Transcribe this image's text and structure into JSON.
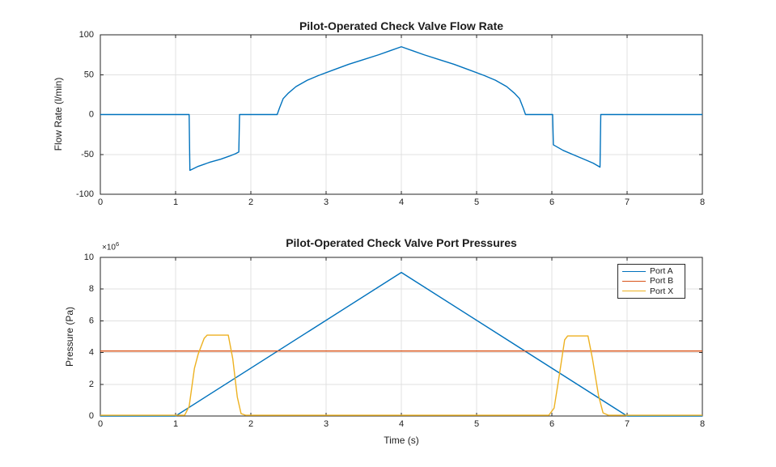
{
  "style": {
    "background": "#ffffff",
    "axis_color": "#252525",
    "grid_color": "#e0e0e0",
    "text_color": "#1c1c1c"
  },
  "chart_data": [
    {
      "name": "flow-rate",
      "type": "line",
      "title": "Pilot-Operated Check Valve Flow Rate",
      "xlabel": "",
      "ylabel": "Flow Rate (l/min)",
      "xlim": [
        0,
        8
      ],
      "ylim": [
        -100,
        100
      ],
      "xticks": [
        0,
        1,
        2,
        3,
        4,
        5,
        6,
        7,
        8
      ],
      "xtick_labels": [
        "0",
        "1",
        "2",
        "3",
        "4",
        "5",
        "6",
        "7",
        "8"
      ],
      "yticks": [
        -100,
        -50,
        0,
        50,
        100
      ],
      "ytick_labels": [
        "-100",
        "-50",
        "0",
        "50",
        "100"
      ],
      "grid": true,
      "legend": null,
      "series": [
        {
          "name": "Flow Rate",
          "color": "#0072BD",
          "points": [
            [
              0,
              0
            ],
            [
              1.18,
              0
            ],
            [
              1.19,
              -70
            ],
            [
              1.3,
              -65
            ],
            [
              1.45,
              -60
            ],
            [
              1.6,
              -56
            ],
            [
              1.72,
              -52
            ],
            [
              1.8,
              -49
            ],
            [
              1.84,
              -47
            ],
            [
              1.85,
              0
            ],
            [
              2.35,
              0
            ],
            [
              2.38,
              8
            ],
            [
              2.43,
              20
            ],
            [
              2.5,
              27
            ],
            [
              2.6,
              35
            ],
            [
              2.75,
              43
            ],
            [
              2.9,
              49
            ],
            [
              3.1,
              56
            ],
            [
              3.3,
              63
            ],
            [
              3.5,
              69
            ],
            [
              3.7,
              75
            ],
            [
              3.85,
              80
            ],
            [
              4,
              85
            ],
            [
              4.15,
              80
            ],
            [
              4.3,
              75
            ],
            [
              4.5,
              69
            ],
            [
              4.7,
              63
            ],
            [
              4.9,
              56
            ],
            [
              5.1,
              49
            ],
            [
              5.25,
              43
            ],
            [
              5.4,
              35
            ],
            [
              5.5,
              27
            ],
            [
              5.57,
              20
            ],
            [
              5.62,
              8
            ],
            [
              5.65,
              0
            ],
            [
              6.01,
              0
            ],
            [
              6.02,
              -38
            ],
            [
              6.15,
              -45
            ],
            [
              6.3,
              -51
            ],
            [
              6.45,
              -57
            ],
            [
              6.55,
              -61
            ],
            [
              6.64,
              -66
            ],
            [
              6.65,
              0
            ],
            [
              8,
              0
            ]
          ]
        }
      ]
    },
    {
      "name": "port-pressures",
      "type": "line",
      "title": "Pilot-Operated Check Valve Port Pressures",
      "xlabel": "Time (s)",
      "ylabel": "Pressure (Pa)",
      "y_multiplier": {
        "base": "×10",
        "exponent": "6"
      },
      "xlim": [
        0,
        8
      ],
      "ylim": [
        0,
        10000000
      ],
      "xticks": [
        0,
        1,
        2,
        3,
        4,
        5,
        6,
        7,
        8
      ],
      "xtick_labels": [
        "0",
        "1",
        "2",
        "3",
        "4",
        "5",
        "6",
        "7",
        "8"
      ],
      "yticks": [
        0,
        2000000,
        4000000,
        6000000,
        8000000,
        10000000
      ],
      "ytick_labels": [
        "0",
        "2",
        "4",
        "6",
        "8",
        "10"
      ],
      "grid": true,
      "legend": {
        "position": "northeast",
        "items": [
          {
            "label": "Port A",
            "color": "#0072BD"
          },
          {
            "label": "Port B",
            "color": "#D95319"
          },
          {
            "label": "Port X",
            "color": "#EDB120"
          }
        ]
      },
      "series": [
        {
          "name": "Port A",
          "color": "#0072BD",
          "points": [
            [
              0,
              0
            ],
            [
              1,
              0
            ],
            [
              4,
              9050000
            ],
            [
              7,
              0
            ],
            [
              8,
              0
            ]
          ]
        },
        {
          "name": "Port B",
          "color": "#D95319",
          "points": [
            [
              0,
              4100000
            ],
            [
              8,
              4100000
            ]
          ]
        },
        {
          "name": "Port X",
          "color": "#EDB120",
          "points": [
            [
              0,
              50000
            ],
            [
              1.12,
              50000
            ],
            [
              1.18,
              600000
            ],
            [
              1.25,
              3000000
            ],
            [
              1.3,
              3900000
            ],
            [
              1.38,
              4900000
            ],
            [
              1.42,
              5100000
            ],
            [
              1.7,
              5100000
            ],
            [
              1.76,
              3600000
            ],
            [
              1.82,
              1200000
            ],
            [
              1.87,
              150000
            ],
            [
              1.93,
              50000
            ],
            [
              5.96,
              50000
            ],
            [
              6.03,
              500000
            ],
            [
              6.1,
              2600000
            ],
            [
              6.17,
              4800000
            ],
            [
              6.21,
              5050000
            ],
            [
              6.48,
              5050000
            ],
            [
              6.54,
              3600000
            ],
            [
              6.62,
              1300000
            ],
            [
              6.68,
              200000
            ],
            [
              6.75,
              50000
            ],
            [
              8,
              50000
            ]
          ]
        }
      ]
    }
  ]
}
